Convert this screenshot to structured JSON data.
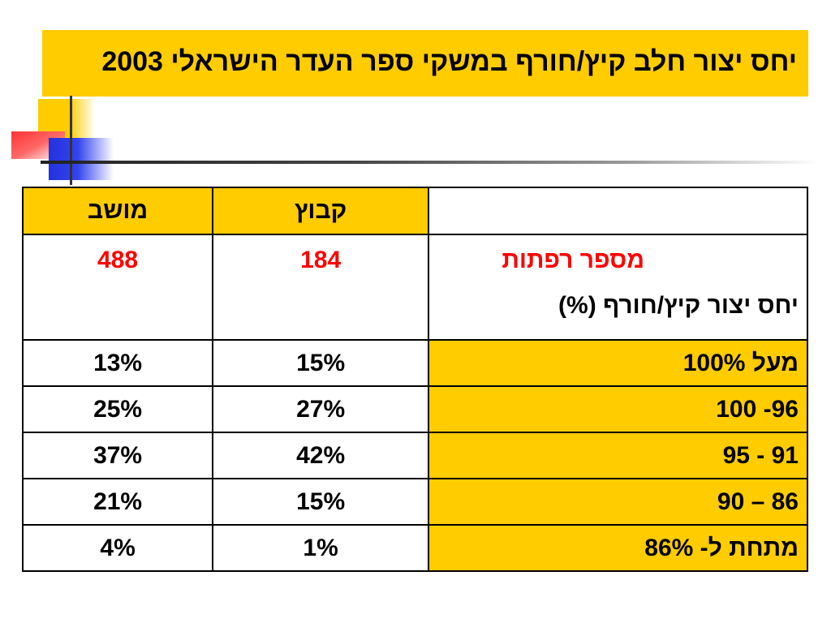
{
  "title": "יחס יצור חלב קיץ/חורף במשקי ספר העדר הישראלי 2003",
  "table": {
    "header": {
      "kibbutz": "קבוץ",
      "moshav": "מושב"
    },
    "farms_label": "מספר רפתות",
    "farms_kibbutz": "184",
    "farms_moshav": "488",
    "ratio_label": "יחס יצור קיץ/חורף (%)",
    "rows": [
      {
        "range": "מעל 100%",
        "kibbutz": "15%",
        "moshav": "13%"
      },
      {
        "range": "96- 100",
        "kibbutz": "27%",
        "moshav": "25%"
      },
      {
        "range": "91 - 95",
        "kibbutz": "42%",
        "moshav": "37%"
      },
      {
        "range": "86 – 90",
        "kibbutz": "15%",
        "moshav": "21%"
      },
      {
        "range": "מתחת ל- 86%",
        "kibbutz": "1%",
        "moshav": "4%"
      }
    ]
  },
  "colors": {
    "accent": "#ffcc00",
    "highlight_text": "#ff0000"
  }
}
